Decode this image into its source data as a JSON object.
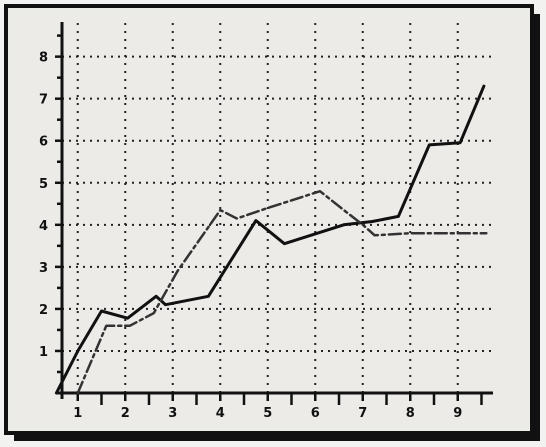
{
  "chart_data": {
    "type": "line",
    "title": "",
    "xlabel": "",
    "ylabel": "",
    "xlim": [
      0.5,
      9.7
    ],
    "ylim": [
      0,
      8.8
    ],
    "grid": true,
    "grid_style": "dotted",
    "legend": "none",
    "x_ticks": [
      1,
      2,
      3,
      4,
      5,
      6,
      7,
      8,
      9
    ],
    "x_tick_labels": [
      "1",
      "2",
      "3",
      "4",
      "5",
      "6",
      "7",
      "8",
      "9"
    ],
    "y_ticks": [
      1,
      2,
      3,
      4,
      5,
      6,
      7,
      8
    ],
    "y_tick_labels": [
      "1",
      "2",
      "3",
      "4",
      "5",
      "6",
      "7",
      "8"
    ],
    "series": [
      {
        "style": "solid",
        "color": "#111111",
        "points": [
          [
            0.55,
            0.0
          ],
          [
            1.0,
            1.0
          ],
          [
            1.5,
            1.95
          ],
          [
            2.05,
            1.78
          ],
          [
            2.65,
            2.3
          ],
          [
            2.85,
            2.1
          ],
          [
            3.75,
            2.3
          ],
          [
            4.75,
            4.1
          ],
          [
            5.35,
            3.55
          ],
          [
            6.6,
            4.0
          ],
          [
            7.2,
            4.08
          ],
          [
            7.75,
            4.2
          ],
          [
            8.4,
            5.9
          ],
          [
            9.05,
            5.95
          ],
          [
            9.55,
            7.3
          ]
        ]
      },
      {
        "style": "dash-dot",
        "color": "#333333",
        "points": [
          [
            1.0,
            0.0
          ],
          [
            1.6,
            1.6
          ],
          [
            2.1,
            1.6
          ],
          [
            2.6,
            1.9
          ],
          [
            3.1,
            2.9
          ],
          [
            4.0,
            4.35
          ],
          [
            4.35,
            4.15
          ],
          [
            5.0,
            4.4
          ],
          [
            6.1,
            4.8
          ],
          [
            6.6,
            4.35
          ],
          [
            7.0,
            4.0
          ],
          [
            7.25,
            3.75
          ],
          [
            8.0,
            3.8
          ],
          [
            9.6,
            3.8
          ]
        ]
      }
    ]
  }
}
